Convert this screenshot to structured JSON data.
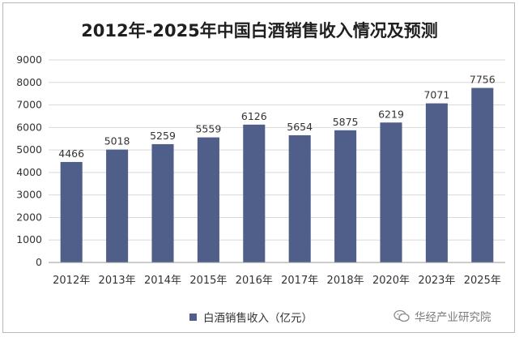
{
  "chart_data": {
    "type": "bar",
    "title": "2012年-2025年中国白酒销售收入情况及预测",
    "categories": [
      "2012年",
      "2013年",
      "2014年",
      "2015年",
      "2016年",
      "2017年",
      "2018年",
      "2020年",
      "2023年",
      "2025年"
    ],
    "series": [
      {
        "name": "白酒销售收入（亿元）",
        "values": [
          4466,
          5018,
          5259,
          5559,
          6126,
          5654,
          5875,
          6219,
          7071,
          7756
        ]
      }
    ],
    "ylim": [
      0,
      9000
    ],
    "yticks": [
      0,
      1000,
      2000,
      3000,
      4000,
      5000,
      6000,
      7000,
      8000,
      9000
    ],
    "grid": true,
    "legend_position": "bottom",
    "bar_color": "#4f5f89"
  },
  "watermark": {
    "text": "华经产业研究院",
    "icon": "wechat-icon"
  }
}
